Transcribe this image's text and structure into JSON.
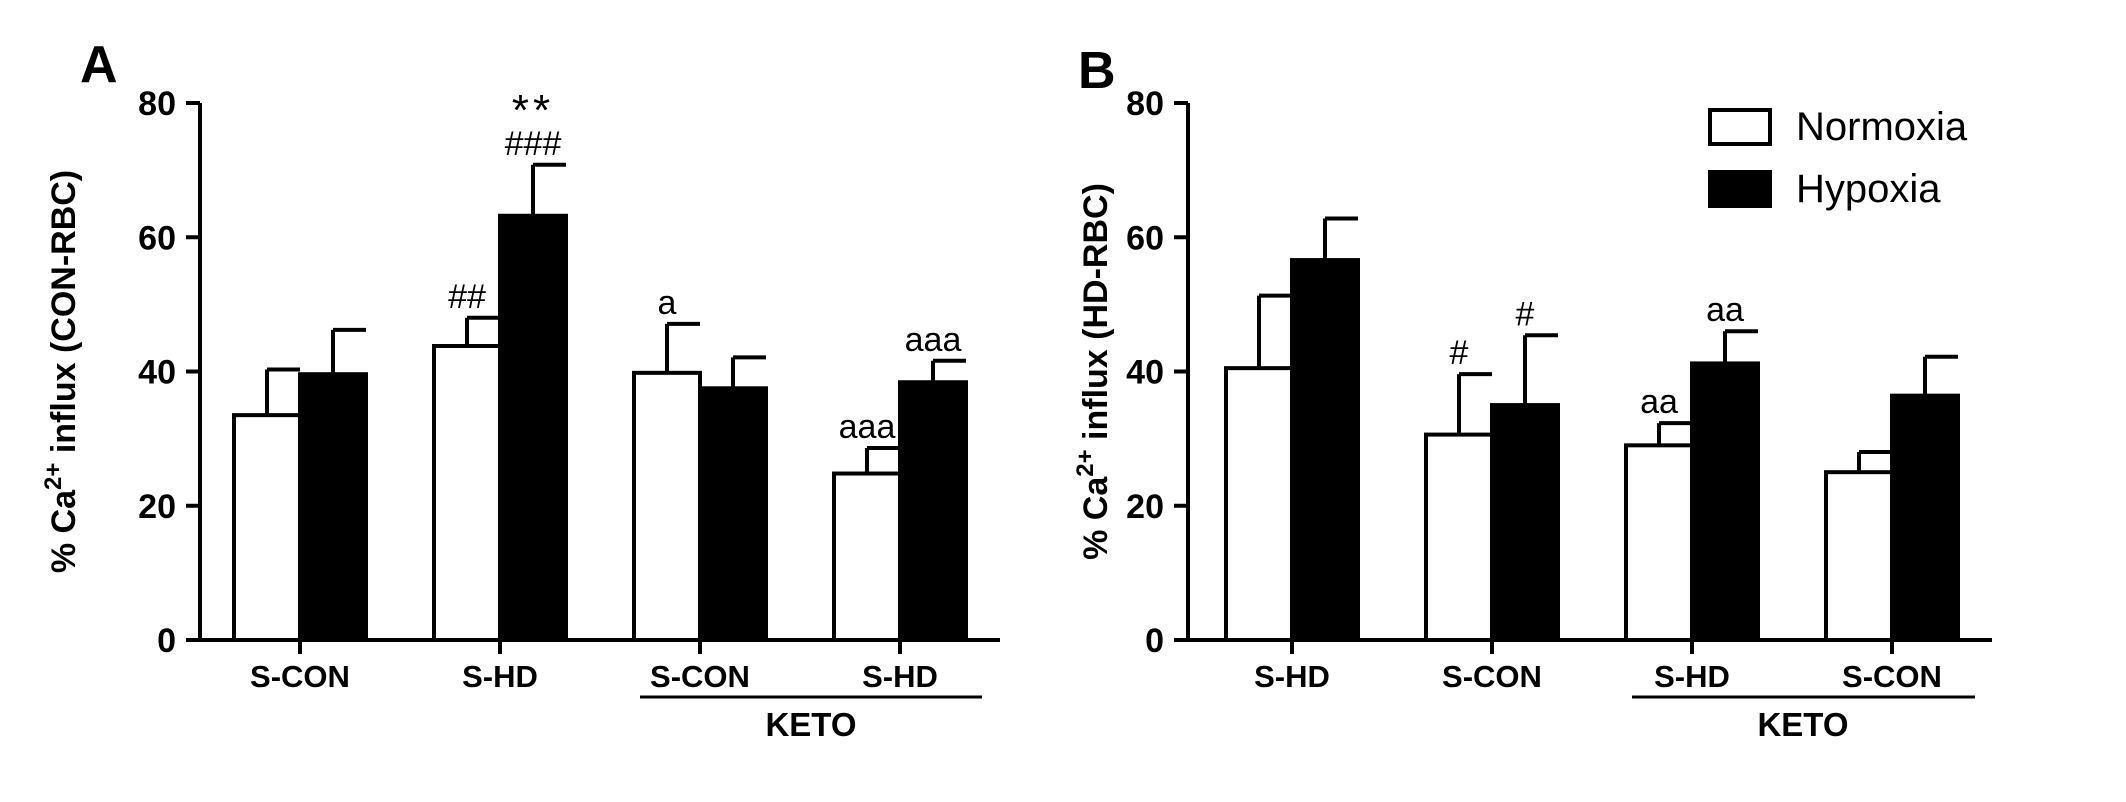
{
  "chart_data": [
    {
      "type": "bar",
      "panel": "A",
      "ylabel": {
        "prefix": "% Ca",
        "sup": "2+",
        "suffix": " influx (CON-RBC)"
      },
      "ylim": [
        0,
        80
      ],
      "yticks": [
        0,
        20,
        40,
        60,
        80
      ],
      "categories": [
        "S-CON",
        "S-HD",
        "S-CON",
        "S-HD"
      ],
      "group_label": "KETO",
      "group_categories": [
        2,
        3
      ],
      "series": [
        {
          "name": "Normoxia",
          "values": [
            33.5,
            43.8,
            39.8,
            24.8
          ],
          "errors": [
            6.8,
            4.2,
            7.3,
            3.8
          ],
          "annotations": [
            "",
            "##",
            "a",
            "aaa"
          ]
        },
        {
          "name": "Hypoxia",
          "values": [
            39.6,
            63.2,
            37.5,
            38.4
          ],
          "errors": [
            6.6,
            7.6,
            4.6,
            3.2
          ],
          "annotations": [
            "",
            "###",
            "",
            "aaa"
          ],
          "annotations_top": [
            "",
            "**",
            "",
            ""
          ]
        }
      ]
    },
    {
      "type": "bar",
      "panel": "B",
      "ylabel": {
        "prefix": "% Ca",
        "sup": "2+",
        "suffix": " influx (HD-RBC)"
      },
      "ylim": [
        0,
        80
      ],
      "yticks": [
        0,
        20,
        40,
        60,
        80
      ],
      "categories": [
        "S-HD",
        "S-CON",
        "S-HD",
        "S-CON"
      ],
      "group_label": "KETO",
      "group_categories": [
        2,
        3
      ],
      "series": [
        {
          "name": "Normoxia",
          "values": [
            40.5,
            30.6,
            29.0,
            25.0
          ],
          "errors": [
            10.8,
            9.0,
            3.3,
            3.0
          ],
          "annotations": [
            "",
            "#",
            "aa",
            ""
          ]
        },
        {
          "name": "Hypoxia",
          "values": [
            56.6,
            35.0,
            41.2,
            36.4
          ],
          "errors": [
            6.2,
            10.4,
            4.8,
            5.8
          ],
          "annotations": [
            "",
            "#",
            "aa",
            ""
          ]
        }
      ]
    }
  ],
  "legend": [
    {
      "label": "Normoxia",
      "fill": "#ffffff"
    },
    {
      "label": "Hypoxia",
      "fill": "#000000"
    }
  ],
  "colors": {
    "normoxia": "#ffffff",
    "hypoxia": "#000000",
    "stroke": "#000000"
  }
}
